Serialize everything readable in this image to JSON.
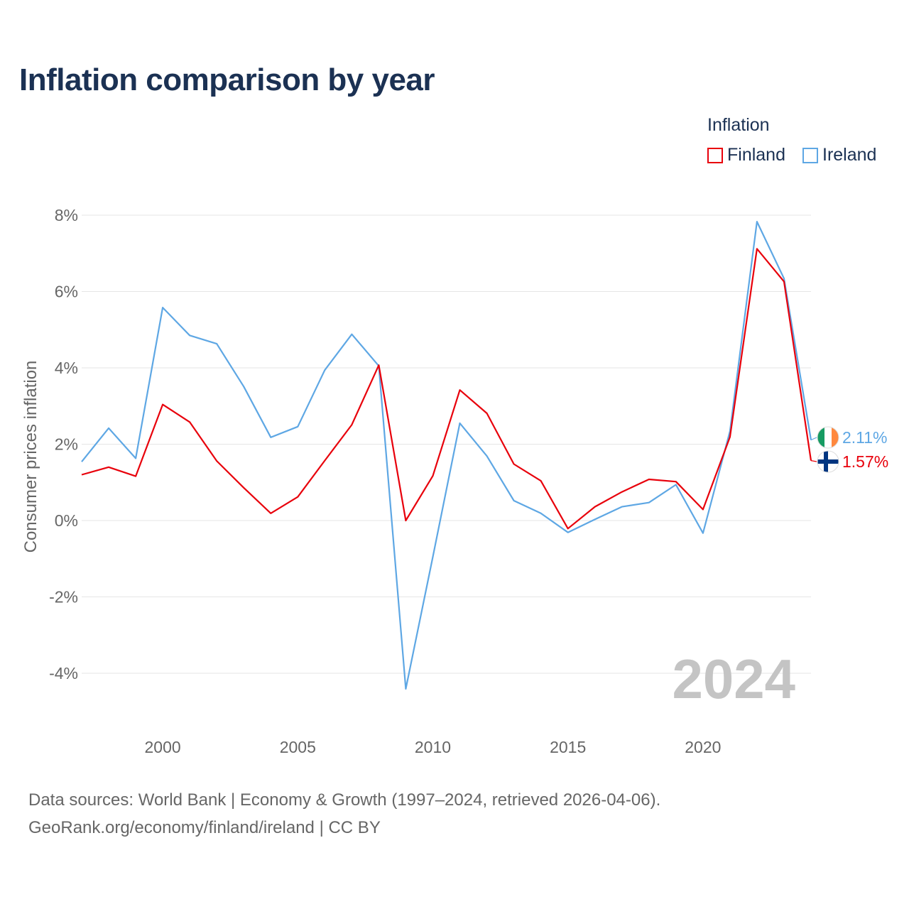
{
  "title": "Inflation comparison by year",
  "legend": {
    "title": "Inflation",
    "items": [
      {
        "label": "Finland",
        "color": "#e8000b"
      },
      {
        "label": "Ireland",
        "color": "#5ea7e4"
      }
    ]
  },
  "chart_data": {
    "type": "line",
    "ylabel": "Consumer prices inflation",
    "xlabel": "",
    "ylim": [
      -4.8,
      8.2
    ],
    "xlim": [
      1997,
      2024
    ],
    "yticks": [
      8,
      6,
      4,
      2,
      0,
      -2,
      -4
    ],
    "ytick_labels": [
      "8%",
      "6%",
      "4%",
      "2%",
      "0%",
      "-2%",
      "-4%"
    ],
    "xticks": [
      2000,
      2005,
      2010,
      2015,
      2020
    ],
    "xtick_labels": [
      "2000",
      "2005",
      "2010",
      "2015",
      "2020"
    ],
    "grid": true,
    "watermark_year": "2024",
    "x": [
      1997,
      1998,
      1999,
      2000,
      2001,
      2002,
      2003,
      2004,
      2005,
      2006,
      2007,
      2008,
      2009,
      2010,
      2011,
      2012,
      2013,
      2014,
      2015,
      2016,
      2017,
      2018,
      2019,
      2020,
      2021,
      2022,
      2023,
      2024
    ],
    "series": [
      {
        "name": "Finland",
        "color": "#e8000b",
        "end_label": "1.57%",
        "flag_icon": "finland-flag-icon",
        "values": [
          1.2,
          1.4,
          1.16,
          3.04,
          2.58,
          1.56,
          0.86,
          0.19,
          0.62,
          1.57,
          2.51,
          4.07,
          0.0,
          1.17,
          3.42,
          2.81,
          1.48,
          1.04,
          -0.21,
          0.36,
          0.75,
          1.08,
          1.02,
          0.29,
          2.19,
          7.12,
          6.26,
          1.57
        ]
      },
      {
        "name": "Ireland",
        "color": "#5ea7e4",
        "end_label": "2.11%",
        "flag_icon": "ireland-flag-icon",
        "values": [
          1.54,
          2.42,
          1.63,
          5.58,
          4.85,
          4.63,
          3.51,
          2.18,
          2.46,
          3.94,
          4.88,
          4.05,
          -4.41,
          -0.95,
          2.55,
          1.69,
          0.52,
          0.19,
          -0.31,
          0.03,
          0.36,
          0.47,
          0.94,
          -0.33,
          2.34,
          7.83,
          6.34,
          2.11
        ]
      }
    ]
  },
  "source": {
    "line1": "Data sources: World Bank | Economy & Growth (1997–2024, retrieved 2026-04-06).",
    "line2": "GeoRank.org/economy/finland/ireland | CC BY"
  }
}
